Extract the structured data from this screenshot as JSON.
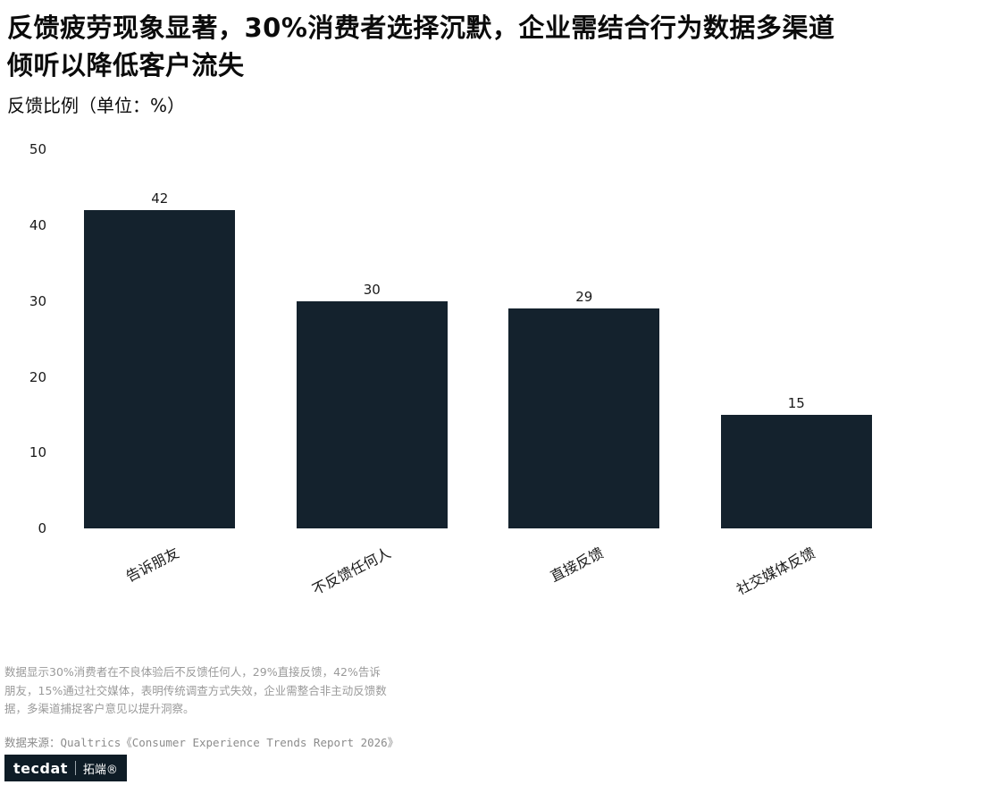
{
  "header": {
    "title": "反馈疲劳现象显著，30%消费者选择沉默，企业需结合行为数据多渠道\n倾听以降低客户流失",
    "subtitle": "反馈比例（单位：%）"
  },
  "chart_data": {
    "type": "bar",
    "categories": [
      "告诉朋友",
      "不反馈任何人",
      "直接反馈",
      "社交媒体反馈"
    ],
    "values": [
      42,
      30,
      29,
      15
    ],
    "title": "反馈比例（单位：%）",
    "xlabel": "",
    "ylabel": "",
    "ylim": [
      0,
      50
    ],
    "yticks": [
      0,
      10,
      20,
      30,
      40,
      50
    ],
    "grid": "off",
    "legend": "none",
    "bar_color": "#14222d"
  },
  "footer": {
    "note": "数据显示30%消费者在不良体验后不反馈任何人，29%直接反馈，42%告诉朋友，15%通过社交媒体，表明传统调查方式失效，企业需整合非主动反馈数据，多渠道捕捉客户意见以提升洞察。",
    "source": "数据来源：Qualtrics《Consumer Experience Trends Report 2026》"
  },
  "logo": {
    "brand": "tecdat",
    "brand_cn": "拓端®"
  }
}
